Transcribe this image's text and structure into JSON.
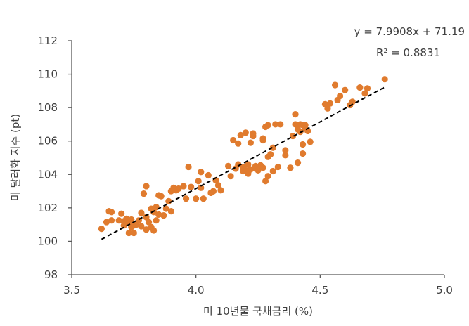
{
  "chart_data": {
    "type": "scatter",
    "title": "",
    "xlabel": "미 10년물 국채금리 (%)",
    "ylabel": "미 달러화 지수 (pt)",
    "xlim": [
      3.5,
      5.0
    ],
    "ylim": [
      98,
      112
    ],
    "xticks": [
      3.5,
      4.0,
      4.5,
      5.0
    ],
    "xtick_labels": [
      "3.5",
      "4.0",
      "4.5",
      "5.0"
    ],
    "yticks": [
      98,
      100,
      102,
      104,
      106,
      108,
      110,
      112
    ],
    "ytick_labels": [
      "98",
      "100",
      "102",
      "104",
      "106",
      "108",
      "110",
      "112"
    ],
    "grid": false,
    "marker_color": "#E07B2E",
    "trendline": {
      "style": "dashed",
      "color": "#000000",
      "slope": 7.9908,
      "intercept": 71.19,
      "x_range": [
        3.62,
        4.76
      ],
      "equation_label": "y = 7.9908x + 71.19",
      "r2_label": "R² = 0.8831"
    },
    "points": [
      [
        3.62,
        100.75
      ],
      [
        3.65,
        101.8
      ],
      [
        3.64,
        101.15
      ],
      [
        3.66,
        101.25
      ],
      [
        3.66,
        101.75
      ],
      [
        3.69,
        101.25
      ],
      [
        3.7,
        101.65
      ],
      [
        3.71,
        100.95
      ],
      [
        3.71,
        101.2
      ],
      [
        3.72,
        101.35
      ],
      [
        3.73,
        100.5
      ],
      [
        3.73,
        101.15
      ],
      [
        3.74,
        100.85
      ],
      [
        3.74,
        101.3
      ],
      [
        3.75,
        100.5
      ],
      [
        3.75,
        100.95
      ],
      [
        3.76,
        101.0
      ],
      [
        3.77,
        101.25
      ],
      [
        3.78,
        101.7
      ],
      [
        3.78,
        100.9
      ],
      [
        3.79,
        102.85
      ],
      [
        3.8,
        103.3
      ],
      [
        3.8,
        101.45
      ],
      [
        3.8,
        100.7
      ],
      [
        3.81,
        101.15
      ],
      [
        3.82,
        101.95
      ],
      [
        3.82,
        100.85
      ],
      [
        3.83,
        101.75
      ],
      [
        3.83,
        100.65
      ],
      [
        3.84,
        102.05
      ],
      [
        3.84,
        101.25
      ],
      [
        3.85,
        101.6
      ],
      [
        3.85,
        102.75
      ],
      [
        3.86,
        102.7
      ],
      [
        3.87,
        101.55
      ],
      [
        3.88,
        101.95
      ],
      [
        3.89,
        102.4
      ],
      [
        3.9,
        103.0
      ],
      [
        3.9,
        101.8
      ],
      [
        3.91,
        103.2
      ],
      [
        3.92,
        103.05
      ],
      [
        3.93,
        103.15
      ],
      [
        3.95,
        103.3
      ],
      [
        3.96,
        102.55
      ],
      [
        3.97,
        104.45
      ],
      [
        3.98,
        103.25
      ],
      [
        4.0,
        102.55
      ],
      [
        4.01,
        103.6
      ],
      [
        4.02,
        104.15
      ],
      [
        4.02,
        103.2
      ],
      [
        4.03,
        102.55
      ],
      [
        4.05,
        103.95
      ],
      [
        4.06,
        102.9
      ],
      [
        4.07,
        103.0
      ],
      [
        4.08,
        103.65
      ],
      [
        4.09,
        103.35
      ],
      [
        4.1,
        103.05
      ],
      [
        4.13,
        104.5
      ],
      [
        4.14,
        103.9
      ],
      [
        4.15,
        106.05
      ],
      [
        4.16,
        104.35
      ],
      [
        4.17,
        104.6
      ],
      [
        4.17,
        105.85
      ],
      [
        4.18,
        106.35
      ],
      [
        4.19,
        104.2
      ],
      [
        4.19,
        104.45
      ],
      [
        4.2,
        106.5
      ],
      [
        4.2,
        104.25
      ],
      [
        4.21,
        104.05
      ],
      [
        4.21,
        104.6
      ],
      [
        4.22,
        105.9
      ],
      [
        4.22,
        104.3
      ],
      [
        4.23,
        106.3
      ],
      [
        4.23,
        106.45
      ],
      [
        4.24,
        104.35
      ],
      [
        4.24,
        104.5
      ],
      [
        4.25,
        104.25
      ],
      [
        4.26,
        104.55
      ],
      [
        4.27,
        104.4
      ],
      [
        4.27,
        106.15
      ],
      [
        4.27,
        106.05
      ],
      [
        4.28,
        106.85
      ],
      [
        4.28,
        103.6
      ],
      [
        4.29,
        105.05
      ],
      [
        4.29,
        103.9
      ],
      [
        4.29,
        106.95
      ],
      [
        4.3,
        105.2
      ],
      [
        4.31,
        104.2
      ],
      [
        4.31,
        105.6
      ],
      [
        4.32,
        107.0
      ],
      [
        4.33,
        104.45
      ],
      [
        4.34,
        107.0
      ],
      [
        4.36,
        105.15
      ],
      [
        4.36,
        105.45
      ],
      [
        4.38,
        104.4
      ],
      [
        4.39,
        106.3
      ],
      [
        4.4,
        107.6
      ],
      [
        4.4,
        107.0
      ],
      [
        4.41,
        106.7
      ],
      [
        4.41,
        104.7
      ],
      [
        4.42,
        106.55
      ],
      [
        4.42,
        107.0
      ],
      [
        4.43,
        106.95
      ],
      [
        4.43,
        105.8
      ],
      [
        4.43,
        105.25
      ],
      [
        4.44,
        106.95
      ],
      [
        4.44,
        106.75
      ],
      [
        4.45,
        106.6
      ],
      [
        4.46,
        105.95
      ],
      [
        4.52,
        108.2
      ],
      [
        4.53,
        107.95
      ],
      [
        4.54,
        108.25
      ],
      [
        4.56,
        109.35
      ],
      [
        4.57,
        108.45
      ],
      [
        4.58,
        108.7
      ],
      [
        4.6,
        109.05
      ],
      [
        4.62,
        108.15
      ],
      [
        4.63,
        108.35
      ],
      [
        4.66,
        109.2
      ],
      [
        4.68,
        108.85
      ],
      [
        4.69,
        109.15
      ],
      [
        4.76,
        109.7
      ]
    ]
  }
}
